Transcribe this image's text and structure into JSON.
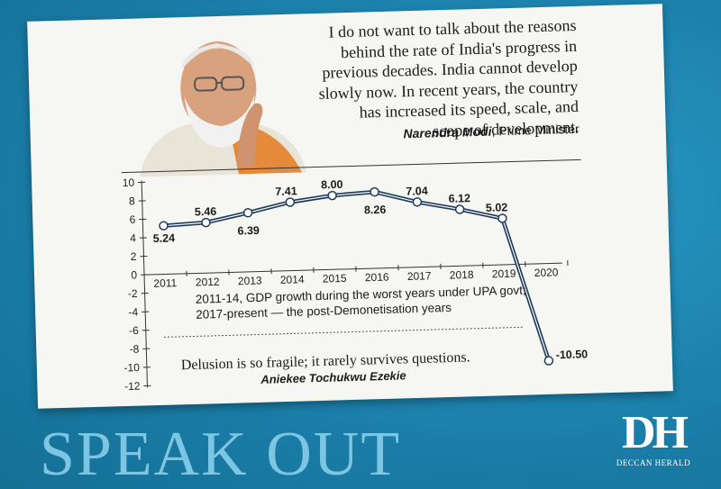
{
  "quote": {
    "lines": [
      "I do not want to talk about the reasons",
      "behind the rate of India's progress in",
      "previous decades. India cannot develop",
      "slowly now. In recent years, the country",
      "has increased its speed, scale, and",
      "scope of development."
    ],
    "speaker": "Narendra Modi",
    "speaker_role": ", Prime Minister"
  },
  "chart_data": {
    "type": "line",
    "title": "",
    "xlabel": "",
    "ylabel": "",
    "x": [
      "2011",
      "2012",
      "2013",
      "2014",
      "2015",
      "2016",
      "2017",
      "2018",
      "2019",
      "2020"
    ],
    "values": [
      5.24,
      5.46,
      6.39,
      7.41,
      8.0,
      8.26,
      7.04,
      6.12,
      5.02,
      -10.5
    ],
    "data_labels": [
      "5.24",
      "5.46",
      "6.39",
      "7.41",
      "8.00",
      "8.26",
      "7.04",
      "6.12",
      "5.02",
      "-10.50"
    ],
    "y_ticks": [
      "10",
      "8",
      "6",
      "4",
      "2",
      "0",
      "-2",
      "-4",
      "-6",
      "-8",
      "-10",
      "-12"
    ],
    "ylim": [
      -12,
      10
    ],
    "line_color": "#1f3b5c",
    "grid": false
  },
  "notes": {
    "line1": "2011-14, GDP growth during the worst years under UPA govt;",
    "line2": "2017-present — the post-Demonetisation years"
  },
  "footer_quote": "Delusion is so fragile; it rarely survives questions.",
  "footer_author": "Aniekee Tochukwu Ezekie",
  "banner": "SPEAK OUT",
  "logo": {
    "mark": "DH",
    "name": "DECCAN HERALD"
  }
}
